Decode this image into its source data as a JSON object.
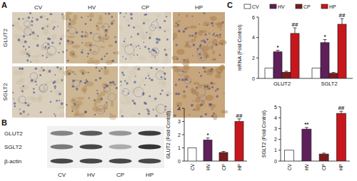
{
  "panel_labels": [
    "A",
    "B",
    "C"
  ],
  "micrographs": {
    "columns": [
      "CV",
      "HV",
      "CP",
      "HP"
    ],
    "rows": [
      "GLUT2",
      "SGLT2"
    ]
  },
  "blot": {
    "rows": [
      "GLUT2",
      "SGLT2",
      "β-actin"
    ],
    "lanes": [
      "CV",
      "HV",
      "CP",
      "HP"
    ]
  },
  "chart_data": [
    {
      "type": "bar",
      "ylabel": "mRNA (Fold Control)",
      "categories": [
        "GLUT2",
        "SGLT2"
      ],
      "legend": "top",
      "ylim": [
        0,
        6
      ],
      "yticks": [
        0,
        2,
        4,
        6
      ],
      "series": [
        {
          "name": "CV",
          "color": "#ffffff",
          "values": [
            1,
            1
          ]
        },
        {
          "name": "HV",
          "color": "#5e1f5b",
          "values": [
            2.6,
            3.5
          ],
          "errors": [
            0.15,
            0.3
          ],
          "significance": [
            "*",
            "*"
          ]
        },
        {
          "name": "CP",
          "color": "#7b1c1c",
          "values": [
            0.6,
            0.5
          ],
          "errors": [
            0.1,
            0.08
          ]
        },
        {
          "name": "HP",
          "color": "#c8161d",
          "values": [
            4.4,
            5.3
          ],
          "errors": [
            0.55,
            0.55
          ],
          "significance": [
            "##",
            "##"
          ]
        }
      ]
    },
    {
      "type": "bar",
      "ylabel": "GLUT2 (Fold Control)",
      "categories": [
        "CV",
        "HV",
        "CP",
        "HP"
      ],
      "colors": [
        "#ffffff",
        "#5e1f5b",
        "#7b1c1c",
        "#c8161d"
      ],
      "values": [
        1,
        1.6,
        0.65,
        3.0
      ],
      "errors": [
        null,
        0.15,
        0.08,
        0.2
      ],
      "significance": [
        null,
        "*",
        null,
        "##"
      ],
      "ylim": [
        0,
        4
      ],
      "yticks": [
        0,
        1,
        2,
        3,
        4
      ]
    },
    {
      "type": "bar",
      "ylabel": "SGLT2 (Fold Control)",
      "categories": [
        "CV",
        "HV",
        "CP",
        "HP"
      ],
      "colors": [
        "#ffffff",
        "#5e1f5b",
        "#7b1c1c",
        "#c8161d"
      ],
      "values": [
        1,
        2.95,
        0.65,
        4.4
      ],
      "errors": [
        null,
        0.15,
        0.08,
        0.2
      ],
      "significance": [
        null,
        "**",
        null,
        "##"
      ],
      "ylim": [
        0,
        5
      ],
      "yticks": [
        0,
        1,
        2,
        3,
        4,
        5
      ]
    }
  ]
}
